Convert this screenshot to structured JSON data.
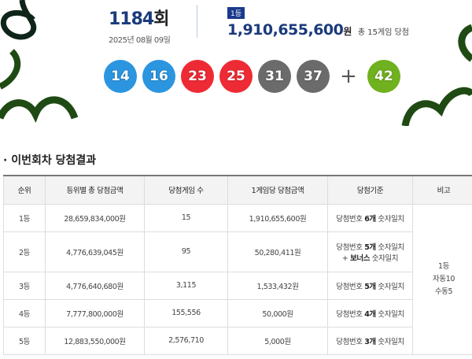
{
  "draw": {
    "round": "1184",
    "round_unit": "회",
    "date": "2025년 08월 09일"
  },
  "prize": {
    "badge": "1등",
    "amount": "1,910,655,600",
    "unit": "원",
    "total": "총 15게임 당첨"
  },
  "balls": [
    {
      "n": "14",
      "color": "#2b95e0"
    },
    {
      "n": "16",
      "color": "#2b95e0"
    },
    {
      "n": "23",
      "color": "#ee2b34"
    },
    {
      "n": "25",
      "color": "#ee2b34"
    },
    {
      "n": "31",
      "color": "#6b6b6b"
    },
    {
      "n": "37",
      "color": "#6b6b6b"
    }
  ],
  "plus": "+",
  "bonus": {
    "n": "42",
    "color": "#6fb11e"
  },
  "section_title": "· 이번회차 당첨결과",
  "table": {
    "headers": [
      "순위",
      "등위별 총 당첨금액",
      "당첨게임 수",
      "1게임당 당첨금액",
      "당첨기준",
      "비고"
    ],
    "rows": [
      {
        "rank": "1등",
        "total": "28,659,834,000원",
        "count": "15",
        "per": "1,910,655,600원",
        "c1": "당첨번호 ",
        "cb": "6개",
        "c2": " 숫자일치"
      },
      {
        "rank": "2등",
        "total": "4,776,639,045원",
        "count": "95",
        "per": "50,280,411원",
        "c1": "당첨번호 ",
        "cb": "5개",
        "c2": " 숫자일치",
        "l2a": "+ ",
        "l2b": "보너스",
        "l2c": " 숫자일치"
      },
      {
        "rank": "3등",
        "total": "4,776,640,680원",
        "count": "3,115",
        "per": "1,533,432원",
        "c1": "당첨번호 ",
        "cb": "5개",
        "c2": " 숫자일치"
      },
      {
        "rank": "4등",
        "total": "7,777,800,000원",
        "count": "155,556",
        "per": "50,000원",
        "c1": "당첨번호 ",
        "cb": "4개",
        "c2": " 숫자일치"
      },
      {
        "rank": "5등",
        "total": "12,883,550,000원",
        "count": "2,576,710",
        "per": "5,000원",
        "c1": "당첨번호 ",
        "cb": "3개",
        "c2": " 숫자일치"
      }
    ],
    "note": [
      "1등",
      "자동10",
      "수동5"
    ]
  },
  "colors": {
    "deco": "#1f4a14",
    "deco_dark": "#10251a",
    "navy": "#1a3a7c"
  }
}
